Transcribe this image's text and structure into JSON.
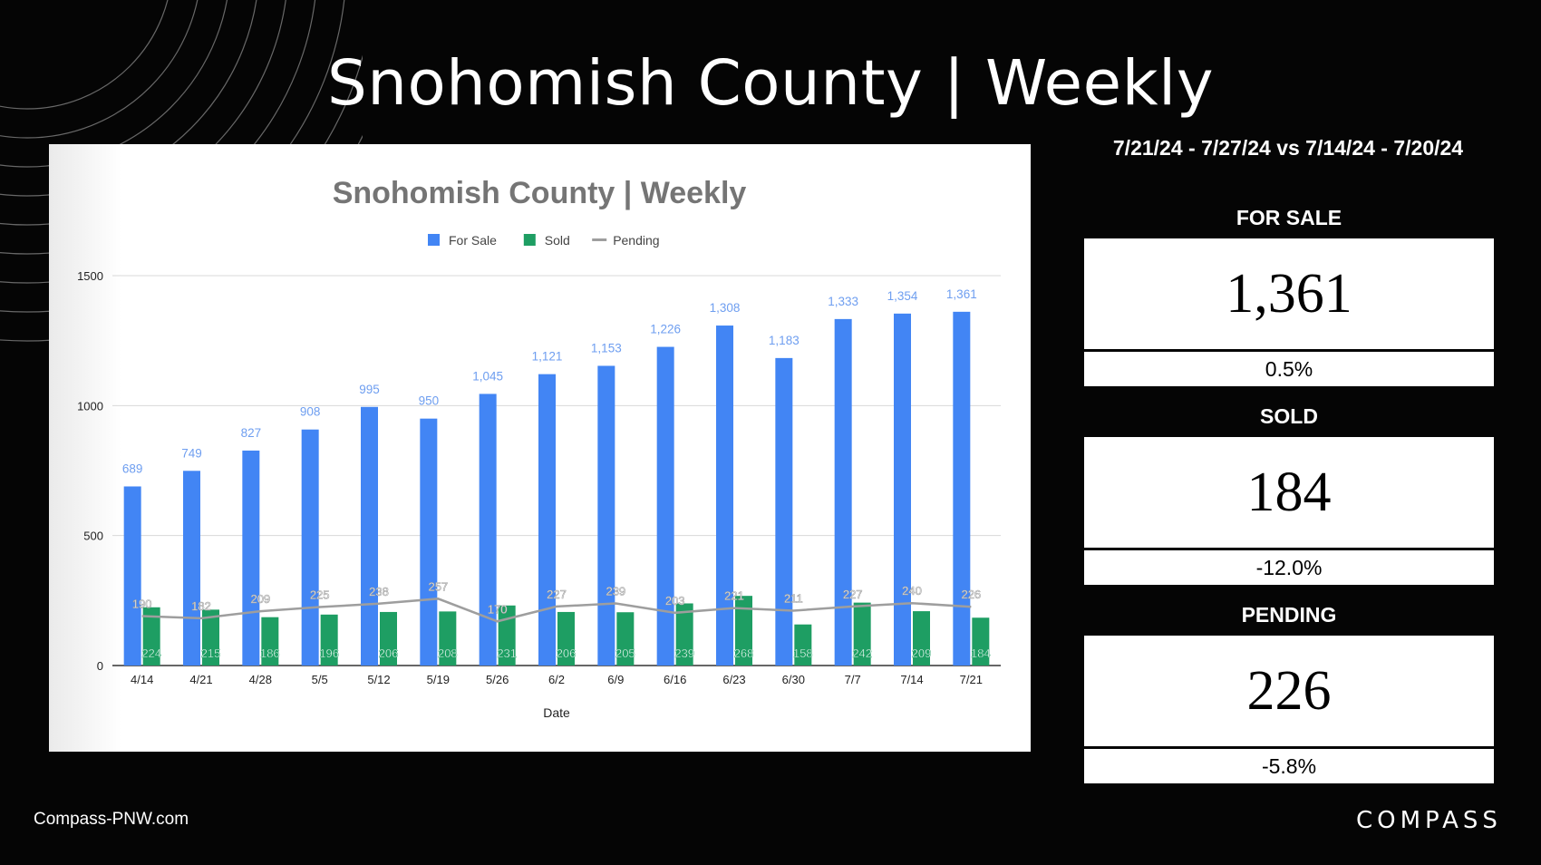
{
  "header": {
    "title": "Snohomish County | Weekly"
  },
  "summary": {
    "date_range": "7/21/24 - 7/27/24 vs 7/14/24 - 7/20/24",
    "for_sale": {
      "label": "FOR SALE",
      "value": "1,361",
      "change": "0.5%"
    },
    "sold": {
      "label": "SOLD",
      "value": "184",
      "change": "-12.0%"
    },
    "pending": {
      "label": "PENDING",
      "value": "226",
      "change": "-5.8%"
    }
  },
  "footer": {
    "site": "Compass-PNW.com",
    "brand": "COMPASS"
  },
  "chart_data": {
    "type": "bar",
    "title": "Snohomish County | Weekly",
    "xlabel": "Date",
    "ylabel": "",
    "ylim": [
      0,
      1500
    ],
    "yticks": [
      0,
      500,
      1000,
      1500
    ],
    "grid": true,
    "legend_position": "top",
    "categories": [
      "4/14",
      "4/21",
      "4/28",
      "5/5",
      "5/12",
      "5/19",
      "5/26",
      "6/2",
      "6/9",
      "6/16",
      "6/23",
      "6/30",
      "7/7",
      "7/14",
      "7/21"
    ],
    "series": [
      {
        "name": "For Sale",
        "type": "bar",
        "color": "#4285f4",
        "values": [
          689,
          749,
          827,
          908,
          995,
          950,
          1045,
          1121,
          1153,
          1226,
          1308,
          1183,
          1333,
          1354,
          1361
        ],
        "labels": [
          "689",
          "749",
          "827",
          "908",
          "995",
          "950",
          "1,045",
          "1,121",
          "1,153",
          "1,226",
          "1,308",
          "1,183",
          "1,333",
          "1,354",
          "1,361"
        ]
      },
      {
        "name": "Sold",
        "type": "bar",
        "color": "#1e9e63",
        "values": [
          224,
          215,
          186,
          196,
          206,
          208,
          231,
          206,
          205,
          239,
          268,
          158,
          242,
          209,
          184
        ],
        "labels": [
          "224",
          "215",
          "186",
          "196",
          "206",
          "208",
          "231",
          "206",
          "205",
          "239",
          "268",
          "158",
          "242",
          "209",
          "184"
        ]
      },
      {
        "name": "Pending",
        "type": "line",
        "color": "#9e9e9e",
        "values": [
          190,
          182,
          209,
          225,
          238,
          257,
          170,
          227,
          239,
          203,
          221,
          211,
          227,
          240,
          226
        ],
        "labels": [
          "190",
          "182",
          "209",
          "225",
          "238",
          "257",
          "170",
          "227",
          "239",
          "203",
          "221",
          "211",
          "227",
          "240",
          "226"
        ]
      }
    ]
  }
}
